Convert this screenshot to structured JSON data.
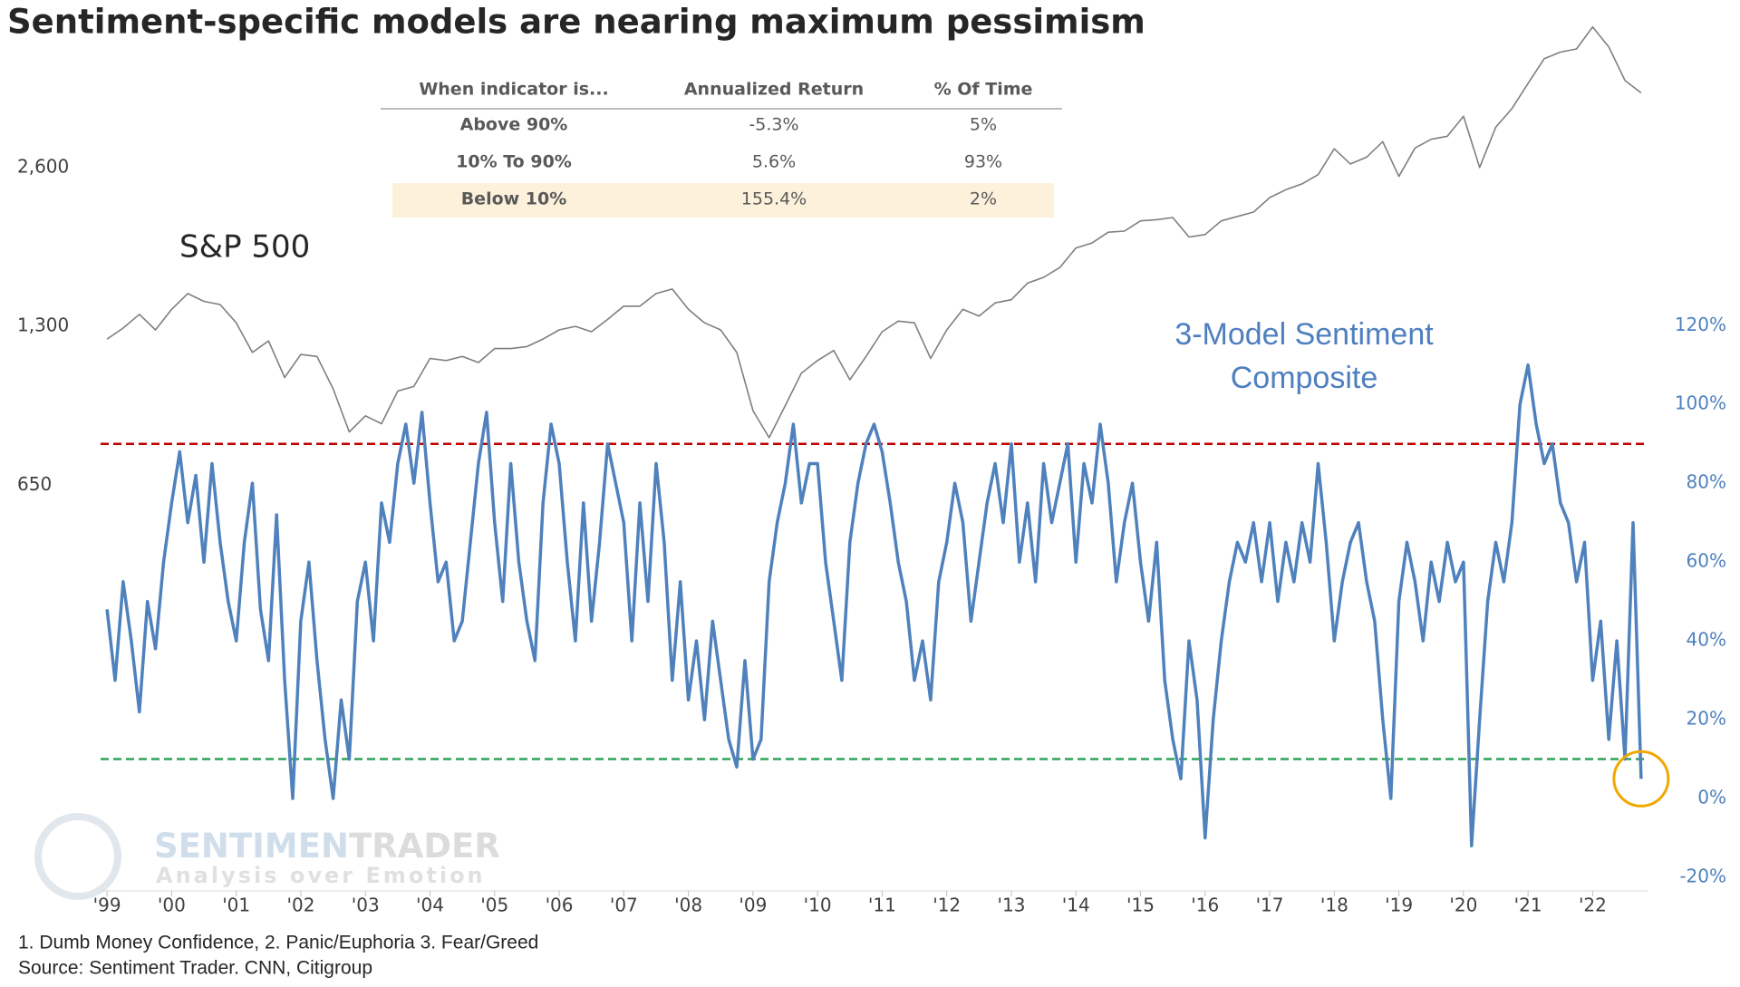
{
  "chart_data": {
    "type": "line",
    "title": "Sentiment-specific models are nearing maximum pessimism",
    "xlim": [
      1998.9,
      2022.85
    ],
    "xticks": [
      {
        "value": 1999,
        "label": "'99"
      },
      {
        "value": 2000,
        "label": "'00"
      },
      {
        "value": 2001,
        "label": "'01"
      },
      {
        "value": 2002,
        "label": "'02"
      },
      {
        "value": 2003,
        "label": "'03"
      },
      {
        "value": 2004,
        "label": "'04"
      },
      {
        "value": 2005,
        "label": "'05"
      },
      {
        "value": 2006,
        "label": "'06"
      },
      {
        "value": 2007,
        "label": "'07"
      },
      {
        "value": 2008,
        "label": "'08"
      },
      {
        "value": 2009,
        "label": "'09"
      },
      {
        "value": 2010,
        "label": "'10"
      },
      {
        "value": 2011,
        "label": "'11"
      },
      {
        "value": 2012,
        "label": "'12"
      },
      {
        "value": 2013,
        "label": "'13"
      },
      {
        "value": 2014,
        "label": "'14"
      },
      {
        "value": 2015,
        "label": "'15"
      },
      {
        "value": 2016,
        "label": "'16"
      },
      {
        "value": 2017,
        "label": "'17"
      },
      {
        "value": 2018,
        "label": "'18"
      },
      {
        "value": 2019,
        "label": "'19"
      },
      {
        "value": 2020,
        "label": "'20"
      },
      {
        "value": 2021,
        "label": "'21"
      },
      {
        "value": 2022,
        "label": "'22"
      }
    ],
    "ylim": [
      117.5,
      4900
    ],
    "ylog": true,
    "yticks": [
      650,
      {
        "value": 1300,
        "label": "1,300"
      },
      {
        "value": 2600,
        "label": "2,600"
      }
    ],
    "y2lim": [
      -20,
      197
    ],
    "y2ticks": [
      {
        "value": -20,
        "label": "-20%"
      },
      {
        "value": 0,
        "label": "0%"
      },
      {
        "value": 20,
        "label": "20%"
      },
      {
        "value": 40,
        "label": "40%"
      },
      {
        "value": 60,
        "label": "60%"
      },
      {
        "value": 80,
        "label": "80%"
      },
      {
        "value": 100,
        "label": "100%"
      },
      {
        "value": 120,
        "label": "120%"
      }
    ],
    "hlines": [
      {
        "value": 90,
        "axis": "y2",
        "color": "#c00000"
      },
      {
        "value": 10,
        "axis": "y2",
        "color": "#2ea35a"
      }
    ],
    "series": [
      {
        "name": "S&P 500",
        "color": "#7f7f7f",
        "axis": "y",
        "x": [
          1999,
          1999.25,
          1999.5,
          1999.75,
          2000,
          2000.25,
          2000.5,
          2000.75,
          2001,
          2001.25,
          2001.5,
          2001.75,
          2002,
          2002.25,
          2002.5,
          2002.75,
          2003,
          2003.25,
          2003.5,
          2003.75,
          2004,
          2004.25,
          2004.5,
          2004.75,
          2005,
          2005.25,
          2005.5,
          2005.75,
          2006,
          2006.25,
          2006.5,
          2006.75,
          2007,
          2007.25,
          2007.5,
          2007.75,
          2008,
          2008.25,
          2008.5,
          2008.75,
          2009,
          2009.25,
          2009.5,
          2009.75,
          2010,
          2010.25,
          2010.5,
          2010.75,
          2011,
          2011.25,
          2011.5,
          2011.75,
          2012,
          2012.25,
          2012.5,
          2012.75,
          2013,
          2013.25,
          2013.5,
          2013.75,
          2014,
          2014.25,
          2014.5,
          2014.75,
          2015,
          2015.25,
          2015.5,
          2015.75,
          2016,
          2016.25,
          2016.5,
          2016.75,
          2017,
          2017.25,
          2017.5,
          2017.75,
          2018,
          2018.25,
          2018.5,
          2018.75,
          2019,
          2019.25,
          2019.5,
          2019.75,
          2020,
          2020.25,
          2020.5,
          2020.75,
          2021,
          2021.25,
          2021.5,
          2021.75,
          2022,
          2022.25,
          2022.5,
          2022.75
        ],
        "values": [
          1230,
          1290,
          1370,
          1280,
          1400,
          1500,
          1450,
          1430,
          1320,
          1160,
          1220,
          1040,
          1150,
          1140,
          990,
          820,
          880,
          850,
          980,
          1000,
          1130,
          1120,
          1140,
          1110,
          1180,
          1180,
          1190,
          1230,
          1280,
          1300,
          1270,
          1340,
          1420,
          1420,
          1500,
          1530,
          1400,
          1320,
          1280,
          1160,
          900,
          800,
          920,
          1060,
          1120,
          1170,
          1030,
          1140,
          1270,
          1330,
          1320,
          1130,
          1280,
          1400,
          1360,
          1440,
          1460,
          1570,
          1610,
          1680,
          1830,
          1870,
          1960,
          1970,
          2060,
          2070,
          2090,
          1920,
          1940,
          2060,
          2100,
          2140,
          2280,
          2360,
          2420,
          2520,
          2820,
          2640,
          2720,
          2910,
          2500,
          2830,
          2940,
          2980,
          3250,
          2600,
          3100,
          3360,
          3750,
          4180,
          4300,
          4360,
          4800,
          4400,
          3800,
          3600
        ]
      },
      {
        "name": "3-Model Sentiment Composite",
        "color": "#4f81bd",
        "axis": "y2",
        "x": [
          1999,
          1999.125,
          1999.25,
          1999.375,
          1999.5,
          1999.625,
          1999.75,
          1999.875,
          2000,
          2000.125,
          2000.25,
          2000.375,
          2000.5,
          2000.625,
          2000.75,
          2000.875,
          2001,
          2001.125,
          2001.25,
          2001.375,
          2001.5,
          2001.625,
          2001.75,
          2001.875,
          2002,
          2002.125,
          2002.25,
          2002.375,
          2002.5,
          2002.625,
          2002.75,
          2002.875,
          2003,
          2003.125,
          2003.25,
          2003.375,
          2003.5,
          2003.625,
          2003.75,
          2003.875,
          2004,
          2004.125,
          2004.25,
          2004.375,
          2004.5,
          2004.625,
          2004.75,
          2004.875,
          2005,
          2005.125,
          2005.25,
          2005.375,
          2005.5,
          2005.625,
          2005.75,
          2005.875,
          2006,
          2006.125,
          2006.25,
          2006.375,
          2006.5,
          2006.625,
          2006.75,
          2006.875,
          2007,
          2007.125,
          2007.25,
          2007.375,
          2007.5,
          2007.625,
          2007.75,
          2007.875,
          2008,
          2008.125,
          2008.25,
          2008.375,
          2008.5,
          2008.625,
          2008.75,
          2008.875,
          2009,
          2009.125,
          2009.25,
          2009.375,
          2009.5,
          2009.625,
          2009.75,
          2009.875,
          2010,
          2010.125,
          2010.25,
          2010.375,
          2010.5,
          2010.625,
          2010.75,
          2010.875,
          2011,
          2011.125,
          2011.25,
          2011.375,
          2011.5,
          2011.625,
          2011.75,
          2011.875,
          2012,
          2012.125,
          2012.25,
          2012.375,
          2012.5,
          2012.625,
          2012.75,
          2012.875,
          2013,
          2013.125,
          2013.25,
          2013.375,
          2013.5,
          2013.625,
          2013.75,
          2013.875,
          2014,
          2014.125,
          2014.25,
          2014.375,
          2014.5,
          2014.625,
          2014.75,
          2014.875,
          2015,
          2015.125,
          2015.25,
          2015.375,
          2015.5,
          2015.625,
          2015.75,
          2015.875,
          2016,
          2016.125,
          2016.25,
          2016.375,
          2016.5,
          2016.625,
          2016.75,
          2016.875,
          2017,
          2017.125,
          2017.25,
          2017.375,
          2017.5,
          2017.625,
          2017.75,
          2017.875,
          2018,
          2018.125,
          2018.25,
          2018.375,
          2018.5,
          2018.625,
          2018.75,
          2018.875,
          2019,
          2019.125,
          2019.25,
          2019.375,
          2019.5,
          2019.625,
          2019.75,
          2019.875,
          2020,
          2020.125,
          2020.25,
          2020.375,
          2020.5,
          2020.625,
          2020.75,
          2020.875,
          2021,
          2021.125,
          2021.25,
          2021.375,
          2021.5,
          2021.625,
          2021.75,
          2021.875,
          2022,
          2022.125,
          2022.25,
          2022.375,
          2022.5,
          2022.625,
          2022.75
        ],
        "values": [
          48,
          30,
          55,
          40,
          22,
          50,
          38,
          60,
          75,
          88,
          70,
          82,
          60,
          85,
          65,
          50,
          40,
          65,
          80,
          48,
          35,
          72,
          30,
          0,
          45,
          60,
          35,
          15,
          0,
          25,
          10,
          50,
          60,
          40,
          75,
          65,
          85,
          95,
          80,
          98,
          75,
          55,
          60,
          40,
          45,
          65,
          85,
          98,
          70,
          50,
          85,
          60,
          45,
          35,
          75,
          95,
          85,
          60,
          40,
          75,
          45,
          65,
          90,
          80,
          70,
          40,
          75,
          50,
          85,
          65,
          30,
          55,
          25,
          40,
          20,
          45,
          30,
          15,
          8,
          35,
          10,
          15,
          55,
          70,
          80,
          95,
          75,
          85,
          85,
          60,
          45,
          30,
          65,
          80,
          90,
          95,
          88,
          75,
          60,
          50,
          30,
          40,
          25,
          55,
          65,
          80,
          70,
          45,
          60,
          75,
          85,
          70,
          90,
          60,
          75,
          55,
          85,
          70,
          80,
          90,
          60,
          85,
          75,
          95,
          80,
          55,
          70,
          80,
          60,
          45,
          65,
          30,
          15,
          5,
          40,
          25,
          -10,
          20,
          40,
          55,
          65,
          60,
          70,
          55,
          70,
          50,
          65,
          55,
          70,
          60,
          85,
          65,
          40,
          55,
          65,
          70,
          55,
          45,
          20,
          0,
          50,
          65,
          55,
          40,
          60,
          50,
          65,
          55,
          60,
          -12,
          20,
          50,
          65,
          55,
          70,
          100,
          110,
          95,
          85,
          90,
          75,
          70,
          55,
          65,
          30,
          45,
          15,
          40,
          10,
          70,
          5
        ]
      }
    ]
  },
  "table": {
    "columns": [
      "When indicator is...",
      "Annualized Return",
      "% Of Time"
    ],
    "rows": [
      [
        "Above 90%",
        "-5.3%",
        "5%"
      ],
      [
        "10% To 90%",
        "5.6%",
        "93%"
      ],
      [
        "Below 10%",
        "155.4%",
        "2%"
      ]
    ],
    "highlight_row": 2,
    "highlight_color": "#fdf1dc"
  },
  "watermark": {
    "brand_light": "SENTIMEN",
    "brand_dark": "TRADER",
    "tagline": "Analysis over Emotion"
  },
  "footnotes": [
    "1. Dumb Money Confidence, 2. Panic/Euphoria 3. Fear/Greed",
    "Source: Sentiment Trader. CNN, Citigroup"
  ]
}
